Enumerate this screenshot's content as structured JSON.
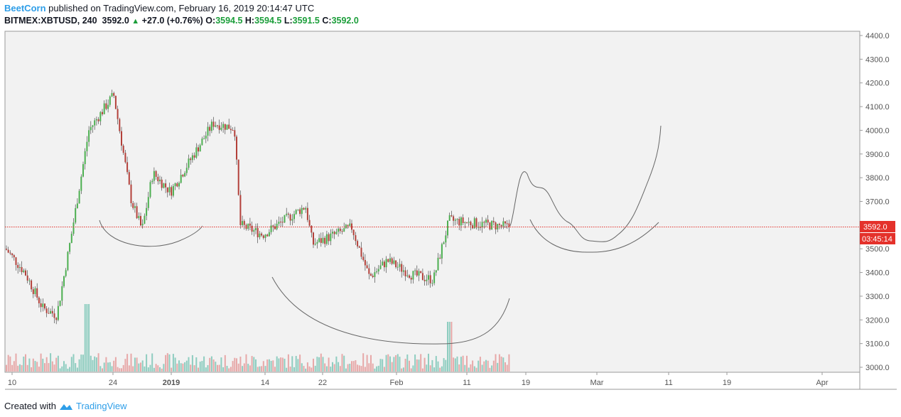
{
  "header": {
    "author": "BeetCorn",
    "published_text": "published on TradingView.com, February 16, 2019 20:14:47 UTC",
    "symbol": "BITMEX:XBTUSD, 240",
    "last": "3592.0",
    "change": "+27.0 (+0.76%)",
    "open_label": "O:",
    "open": "3594.5",
    "high_label": "H:",
    "high": "3594.5",
    "low_label": "L:",
    "low": "3591.5",
    "close_label": "C:",
    "close": "3592.0"
  },
  "footer": {
    "created_with": "Created with",
    "brand": "TradingView"
  },
  "price_tag": {
    "price": "3592.0",
    "countdown": "03:45:14"
  },
  "colors": {
    "up": "#4caf50",
    "down": "#b3403a",
    "vol_up": "#8fcdc0",
    "vol_down": "#e7a8a8",
    "tag": "#e4312b",
    "accent": "#2e9ee8"
  },
  "chart_data": {
    "type": "candlestick",
    "title": "BITMEX:XBTUSD, 240",
    "y_ticks": [
      "4400.0",
      "4300.0",
      "4200.0",
      "4100.0",
      "4000.0",
      "3900.0",
      "3800.0",
      "3700.0",
      "3600.0",
      "3500.0",
      "3400.0",
      "3300.0",
      "3200.0",
      "3100.0",
      "3000.0"
    ],
    "ylim": [
      2980,
      4420
    ],
    "x_ticks": [
      "10",
      "24",
      "2019",
      "14",
      "22",
      "Feb",
      "11",
      "19",
      "Mar",
      "11",
      "19",
      "Apr"
    ],
    "current_price_line": 3592.0,
    "approx_close_path": {
      "x": [
        "Dec 10",
        "Dec 12",
        "Dec 14",
        "Dec 17",
        "Dec 19",
        "Dec 21",
        "Dec 24",
        "Dec 27",
        "Dec 29",
        "Jan 1",
        "Jan 4",
        "Jan 7",
        "Jan 10",
        "Jan 11",
        "Jan 14",
        "Jan 17",
        "Jan 19",
        "Jan 22",
        "Jan 26",
        "Jan 28",
        "Feb 1",
        "Feb 4",
        "Feb 7",
        "Feb 8",
        "Feb 10",
        "Feb 16"
      ],
      "y": [
        3500,
        3400,
        3250,
        3220,
        3550,
        4000,
        4150,
        3700,
        3580,
        3820,
        3740,
        4030,
        4010,
        3600,
        3560,
        3610,
        3680,
        3520,
        3590,
        3380,
        3450,
        3390,
        3370,
        3620,
        3610,
        3592
      ]
    },
    "volume_note": "volume histogram along bottom, spike near Feb 8"
  }
}
